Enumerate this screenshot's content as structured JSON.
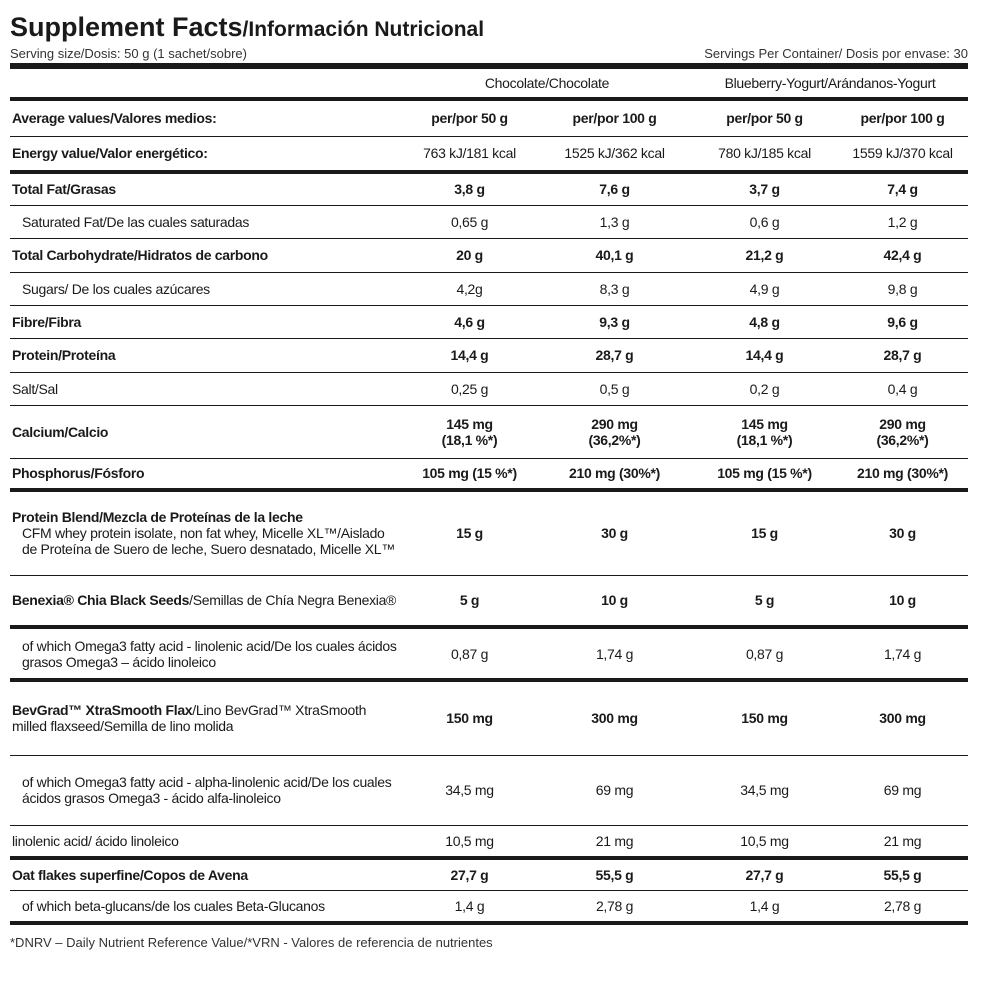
{
  "header": {
    "title": "Supplement Facts",
    "subtitle": "/Información Nutricional",
    "serving_size": "Serving size/Dosis: 50 g (1 sachet/sobre)",
    "servings": "Servings Per Container/ Dosis por envase: 30"
  },
  "table": {
    "groups": [
      "Chocolate/Chocolate",
      "Blueberry-Yogurt/Arándanos-Yogurt"
    ],
    "rows": [
      {
        "label": "Average values/Valores medios:",
        "bold": true,
        "values": [
          "per/por 50 g",
          "per/por 100 g",
          "per/por 50 g",
          "per/por 100 g"
        ]
      },
      {
        "label": "Energy value/Valor energético:",
        "values": [
          "763 kJ/181 kcal",
          "1525 kJ/362 kcal",
          "780 kJ/185 kcal",
          "1559 kJ/370 kcal"
        ]
      },
      {
        "label": "Total Fat/Grasas",
        "bold": true,
        "values": [
          "3,8 g",
          "7,6 g",
          "3,7 g",
          "7,4 g"
        ]
      },
      {
        "note": "Saturated Fat/De las cuales saturadas",
        "indent": true,
        "values": [
          "0,65 g",
          "1,3 g",
          "0,6 g",
          "1,2 g"
        ]
      },
      {
        "label": "Total Carbohydrate/Hidratos de carbono",
        "bold": true,
        "values": [
          "20 g",
          "40,1 g",
          "21,2 g",
          "42,4 g"
        ]
      },
      {
        "note": "Sugars/ De los cuales azúcares",
        "indent": true,
        "values": [
          "4,2g",
          "8,3 g",
          "4,9 g",
          "9,8 g"
        ]
      },
      {
        "label": "Fibre/Fibra",
        "bold": true,
        "values": [
          "4,6 g",
          "9,3 g",
          "4,8 g",
          "9,6 g"
        ]
      },
      {
        "label": "Protein/Proteína",
        "bold": true,
        "values": [
          "14,4 g",
          "28,7 g",
          "14,4 g",
          "28,7 g"
        ]
      },
      {
        "note": "Salt/Sal",
        "values": [
          "0,25 g",
          "0,5 g",
          "0,2 g",
          "0,4 g"
        ]
      },
      {
        "label": "Calcium/Calcio",
        "bold": true,
        "values": [
          "145 mg\n(18,1 %*)",
          "290 mg\n(36,2%*)",
          "145 mg\n(18,1 %*)",
          "290 mg\n(36,2%*)"
        ]
      },
      {
        "label": "Phosphorus/Fósforo",
        "bold": true,
        "values": [
          "105 mg (15 %*)",
          "210 mg (30%*)",
          "105 mg (15 %*)",
          "210 mg (30%*)"
        ]
      },
      {
        "label": "Protein Blend/Mezcla de Proteínas de la leche",
        "detail": "CFM whey protein isolate, non fat whey, Micelle XL™/Aislado de Proteína de Suero de leche, Suero desnatado, Micelle XL™",
        "bold": true,
        "values": [
          "15 g",
          "30 g",
          "15 g",
          "30 g"
        ]
      },
      {
        "label": "Benexia® Chia Black Seeds",
        "note": "/Semillas de Chía Negra Benexia®",
        "bold": true,
        "values": [
          "5 g",
          "10 g",
          "5 g",
          "10 g"
        ]
      },
      {
        "note": "of which Omega3 fatty acid - linolenic acid/De los cuales ácidos grasos Omega3 – ácido linoleico",
        "indent": true,
        "values": [
          "0,87 g",
          "1,74 g",
          "0,87 g",
          "1,74 g"
        ]
      },
      {
        "label": "BevGrad™ XtraSmooth Flax",
        "note": "/Lino BevGrad™ XtraSmooth milled flaxseed/Semilla de lino molida",
        "bold": true,
        "values": [
          "150 mg",
          "300 mg",
          "150 mg",
          "300 mg"
        ]
      },
      {
        "note": "of which Omega3 fatty acid - alpha-linolenic acid/De los cuales ácidos grasos Omega3 - ácido alfa-linoleico",
        "indent": true,
        "values": [
          "34,5 mg",
          "69 mg",
          "34,5 mg",
          "69 mg"
        ]
      },
      {
        "note": "linolenic acid/ ácido linoleico",
        "values": [
          "10,5 mg",
          "21 mg",
          "10,5 mg",
          "21 mg"
        ]
      },
      {
        "label": "Oat flakes superfine/Copos de Avena",
        "bold": true,
        "values": [
          "27,7 g",
          "55,5 g",
          "27,7 g",
          "55,5 g"
        ]
      },
      {
        "note": "of which beta-glucans/de los cuales Beta-Glucanos",
        "indent": true,
        "values": [
          "1,4 g",
          "2,78 g",
          "1,4 g",
          "2,78 g"
        ]
      }
    ]
  },
  "footnote": "*DNRV – Daily Nutrient Reference Value/*VRN - Valores de referencia de nutrientes"
}
